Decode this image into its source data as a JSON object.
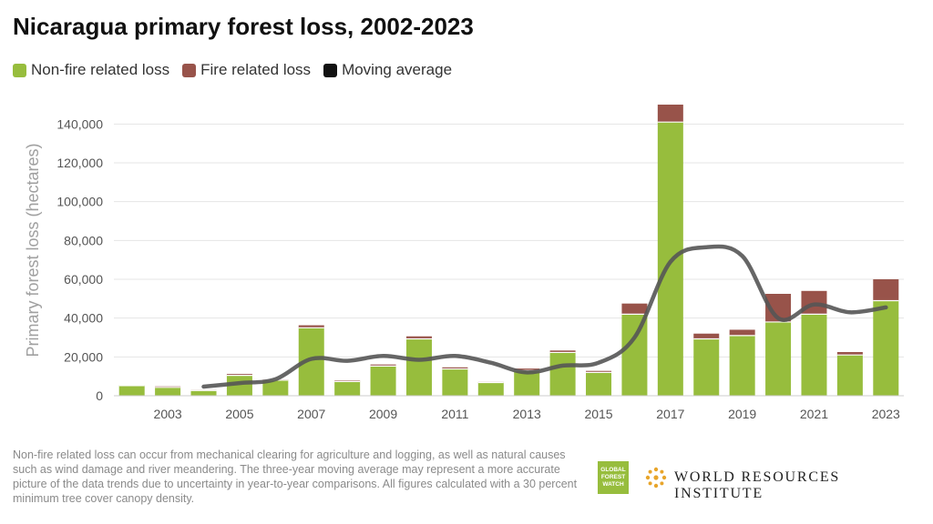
{
  "title": "Nicaragua primary forest loss, 2002-2023",
  "legend": [
    {
      "label": "Non-fire related loss",
      "color": "#97bd3d"
    },
    {
      "label": "Fire related loss",
      "color": "#98534a"
    },
    {
      "label": "Moving average",
      "color": "#111111"
    }
  ],
  "chart_data": {
    "type": "bar",
    "stacked": true,
    "x": [
      2002,
      2003,
      2004,
      2005,
      2006,
      2007,
      2008,
      2009,
      2010,
      2011,
      2012,
      2013,
      2014,
      2015,
      2016,
      2017,
      2018,
      2019,
      2020,
      2021,
      2022,
      2023
    ],
    "x_tick_labels": [
      "2003",
      "2005",
      "2007",
      "2009",
      "2011",
      "2013",
      "2015",
      "2017",
      "2019",
      "2021",
      "2023"
    ],
    "series": [
      {
        "name": "Non-fire related loss",
        "color": "#97bd3d",
        "values": [
          5200,
          4300,
          2700,
          10500,
          8000,
          35000,
          7300,
          15300,
          29300,
          13800,
          6800,
          13000,
          22300,
          12000,
          42000,
          141000,
          29300,
          31000,
          38000,
          42000,
          21000,
          49000
        ]
      },
      {
        "name": "Fire related loss",
        "color": "#98534a",
        "values": [
          200,
          500,
          300,
          700,
          300,
          1300,
          500,
          800,
          1300,
          800,
          300,
          1000,
          1000,
          800,
          5500,
          9000,
          2700,
          3000,
          14500,
          12000,
          1500,
          11000
        ]
      }
    ],
    "moving_average": {
      "name": "Moving average",
      "color": "#555555",
      "x": [
        2004,
        2005,
        2006,
        2007,
        2008,
        2009,
        2010,
        2011,
        2012,
        2013,
        2014,
        2015,
        2016,
        2017,
        2018,
        2019,
        2020,
        2021,
        2022,
        2023
      ],
      "values": [
        4700,
        6500,
        8500,
        19000,
        18000,
        20500,
        18500,
        20500,
        17000,
        12000,
        15500,
        17000,
        30000,
        69000,
        76500,
        72000,
        40000,
        47000,
        43000,
        45500
      ]
    },
    "ylabel": "Primary forest loss (hectares)",
    "ylim": [
      0,
      150000
    ],
    "y_ticks": [
      0,
      20000,
      40000,
      60000,
      80000,
      100000,
      120000,
      140000
    ],
    "y_tick_labels": [
      "0",
      "20,000",
      "40,000",
      "60,000",
      "80,000",
      "100,000",
      "120,000",
      "140,000"
    ],
    "grid": true,
    "legend_position": "top-left"
  },
  "footnote": "Non-fire related loss can occur from mechanical clearing for agriculture and logging, as well as natural causes such as wind damage and river meandering. The three-year moving average may represent a more accurate picture of the data trends due to uncertainty in year-to-year comparisons. All figures calculated with a 30 percent minimum tree cover canopy density.",
  "logos": {
    "gfw_line1": "GLOBAL",
    "gfw_line2": "FOREST",
    "gfw_line3": "WATCH",
    "wri": "WORLD RESOURCES INSTITUTE"
  }
}
